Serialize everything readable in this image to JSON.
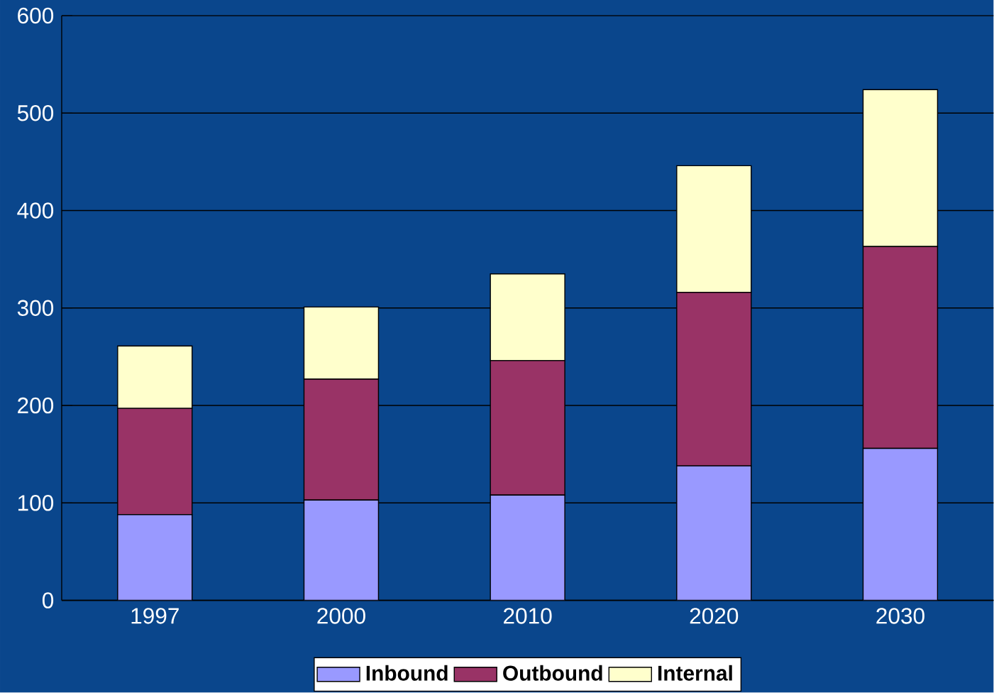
{
  "chart_data": {
    "type": "bar",
    "stacked": true,
    "categories": [
      "1997",
      "2000",
      "2010",
      "2020",
      "2030"
    ],
    "series": [
      {
        "name": "Inbound",
        "color": "#9999ff",
        "values": [
          88,
          103,
          108,
          138,
          156
        ]
      },
      {
        "name": "Outbound",
        "color": "#993366",
        "values": [
          109,
          124,
          138,
          178,
          207
        ]
      },
      {
        "name": "Internal",
        "color": "#ffffcc",
        "values": [
          64,
          74,
          89,
          130,
          161
        ]
      }
    ],
    "ylim": [
      0,
      600
    ],
    "yticks": [
      0,
      100,
      200,
      300,
      400,
      500,
      600
    ],
    "grid": "y",
    "legend": "bottom"
  }
}
